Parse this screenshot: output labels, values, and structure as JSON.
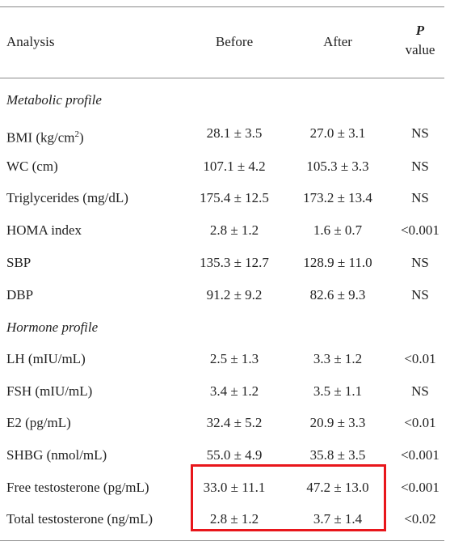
{
  "header": {
    "analysis": "Analysis",
    "before": "Before",
    "after": "After",
    "p_label": "P",
    "p_value": "value"
  },
  "sections": [
    {
      "title": "Metabolic profile",
      "rows": [
        {
          "name": "BMI (kg/cm",
          "sup": "2",
          "close": ")",
          "before": "28.1 ± 3.5",
          "after": "27.0 ± 3.1",
          "p": "NS"
        },
        {
          "name": "WC (cm)",
          "before": "107.1 ± 4.2",
          "after": "105.3 ± 3.3",
          "p": "NS"
        },
        {
          "name": "Triglycerides (mg/dL)",
          "before": "175.4 ± 12.5",
          "after": "173.2 ± 13.4",
          "p": "NS"
        },
        {
          "name": "HOMA index",
          "before": "2.8 ± 1.2",
          "after": "1.6 ± 0.7",
          "p": "<0.001"
        },
        {
          "name": "SBP",
          "before": "135.3 ± 12.7",
          "after": "128.9 ± 11.0",
          "p": "NS"
        },
        {
          "name": "DBP",
          "before": "91.2 ± 9.2",
          "after": "82.6 ± 9.3",
          "p": "NS"
        }
      ]
    },
    {
      "title": "Hormone profile",
      "rows": [
        {
          "name": "LH (mIU/mL)",
          "before": "2.5 ± 1.3",
          "after": "3.3 ± 1.2",
          "p": "<0.01"
        },
        {
          "name": "FSH (mIU/mL)",
          "before": "3.4 ± 1.2",
          "after": "3.5 ± 1.1",
          "p": "NS"
        },
        {
          "name": "E2 (pg/mL)",
          "before": "32.4 ± 5.2",
          "after": "20.9 ± 3.3",
          "p": "<0.01"
        },
        {
          "name": "SHBG (nmol/mL)",
          "before": "55.0 ± 4.9",
          "after": "35.8 ± 3.5",
          "p": "<0.001"
        },
        {
          "name": "Free testosterone (pg/mL)",
          "before": "33.0 ± 11.1",
          "after": "47.2 ± 13.0",
          "p": "<0.001"
        },
        {
          "name": "Total testosterone (ng/mL)",
          "before": "2.8 ± 1.2",
          "after": "3.7 ± 1.4",
          "p": "<0.02"
        }
      ]
    }
  ],
  "highlight_color": "#e8161b"
}
